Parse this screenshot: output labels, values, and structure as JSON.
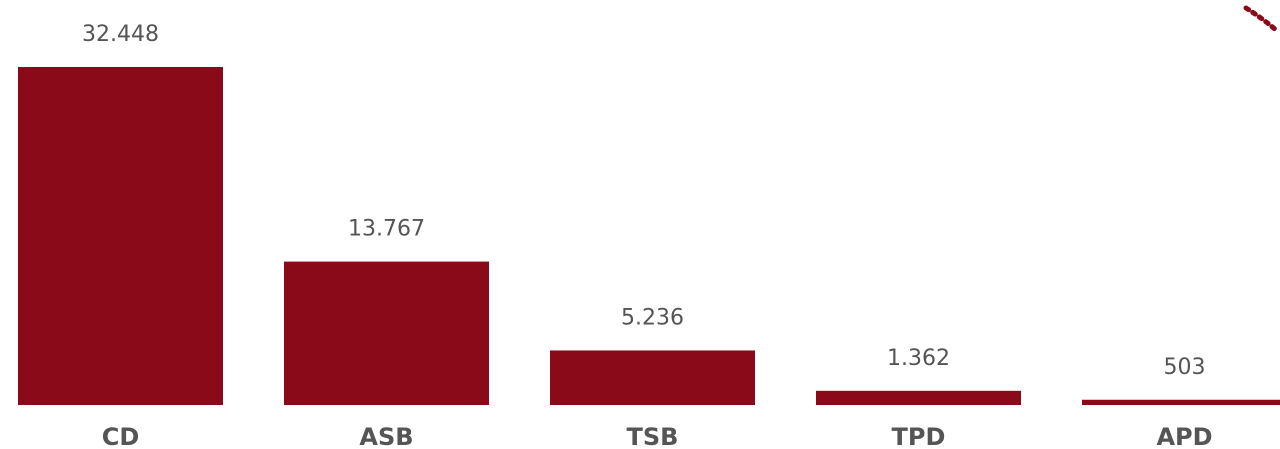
{
  "chart_data": {
    "type": "bar",
    "categories": [
      "CD",
      "ASB",
      "TSB",
      "TPD",
      "APD"
    ],
    "values": [
      32448,
      13767,
      5236,
      1362,
      503
    ],
    "value_labels": [
      "32.448",
      "13.767",
      "5.236",
      "1.362",
      "503"
    ],
    "color": "#8a0a19"
  }
}
